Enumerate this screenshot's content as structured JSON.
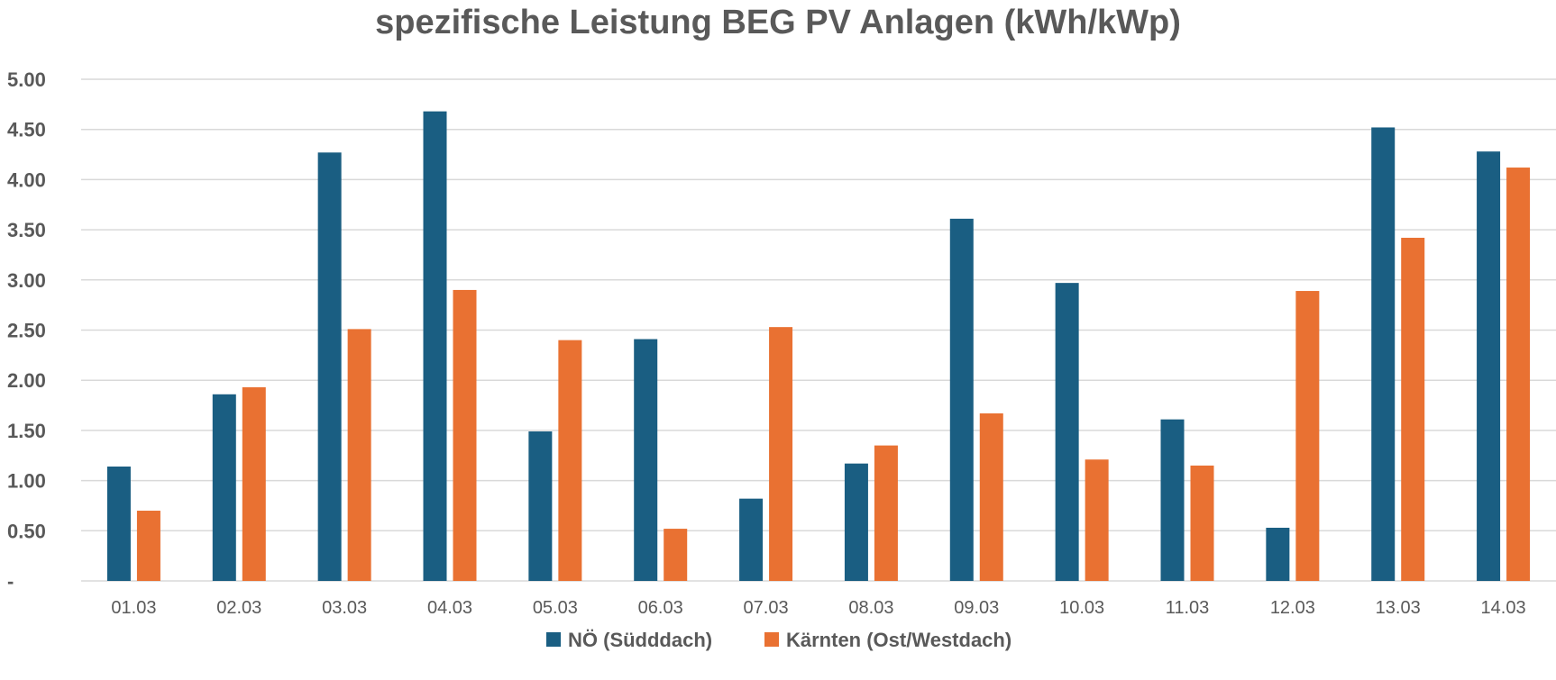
{
  "chart_data": {
    "type": "bar",
    "title": "spezifische Leistung BEG PV Anlagen (kWh/kWp)",
    "xlabel": "",
    "ylabel": "",
    "ylim": [
      0,
      5
    ],
    "yticks": [
      0,
      0.5,
      1.0,
      1.5,
      2.0,
      2.5,
      3.0,
      3.5,
      4.0,
      4.5,
      5.0
    ],
    "ytick_labels": [
      "-",
      "0.50",
      "1.00",
      "1.50",
      "2.00",
      "2.50",
      "3.00",
      "3.50",
      "4.00",
      "4.50",
      "5.00"
    ],
    "grid": true,
    "legend_position": "bottom",
    "categories": [
      "01.03",
      "02.03",
      "03.03",
      "04.03",
      "05.03",
      "06.03",
      "07.03",
      "08.03",
      "09.03",
      "10.03",
      "11.03",
      "12.03",
      "13.03",
      "14.03"
    ],
    "series": [
      {
        "name": "NÖ (Südddach)",
        "color": "#1a5e82",
        "values": [
          1.14,
          1.86,
          4.27,
          4.68,
          1.49,
          2.41,
          0.82,
          1.17,
          3.61,
          2.97,
          1.61,
          0.53,
          4.52,
          4.28
        ]
      },
      {
        "name": "Kärnten (Ost/Westdach)",
        "color": "#e97132",
        "values": [
          0.7,
          1.93,
          2.51,
          2.9,
          2.4,
          0.52,
          2.53,
          1.35,
          1.67,
          1.21,
          1.15,
          2.89,
          3.42,
          4.12
        ]
      }
    ]
  }
}
